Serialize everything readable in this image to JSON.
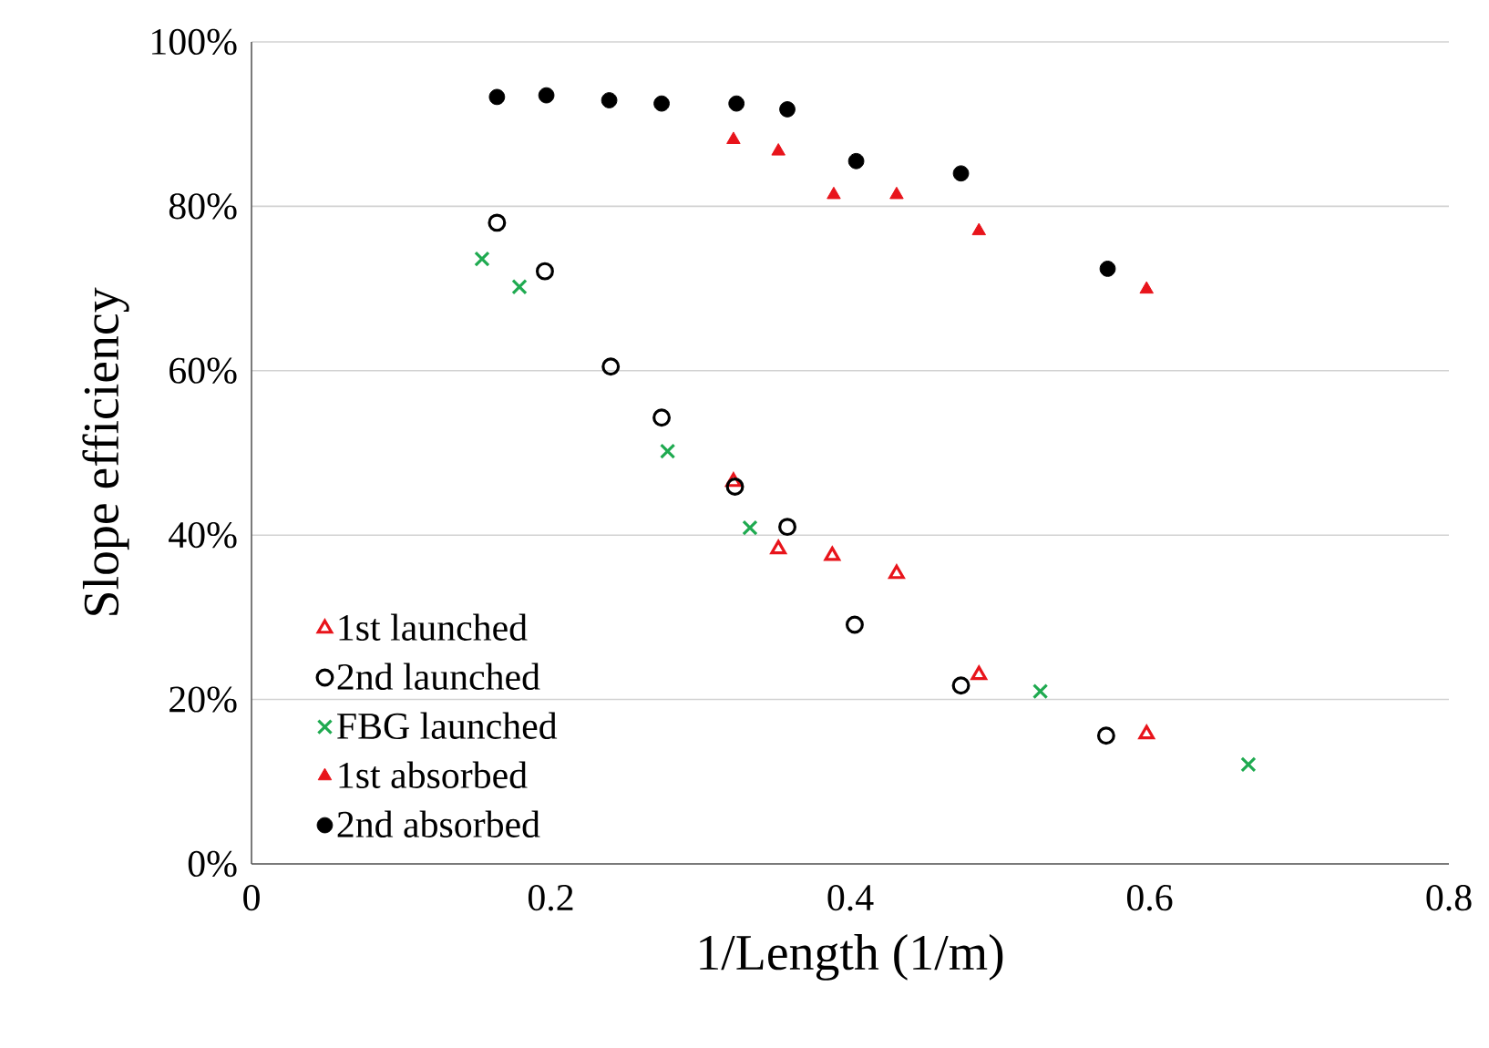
{
  "chart_data": {
    "type": "scatter",
    "xlabel": "1/Length (1/m)",
    "ylabel": "Slope efficiency",
    "xlim": [
      0,
      0.8
    ],
    "xticks": [
      0,
      0.2,
      0.4,
      0.6,
      0.8
    ],
    "ylim": [
      0,
      100
    ],
    "yticks": [
      {
        "value": 0,
        "label": "0%"
      },
      {
        "value": 20,
        "label": "20%"
      },
      {
        "value": 40,
        "label": "40%"
      },
      {
        "value": 60,
        "label": "60%"
      },
      {
        "value": 80,
        "label": "80%"
      },
      {
        "value": 100,
        "label": "100%"
      }
    ],
    "grid": "y",
    "legend": "bottom left",
    "series": [
      {
        "name": "1st launched",
        "color": "#e8141b",
        "marker": "triangle-open",
        "x": [
          0.322,
          0.352,
          0.388,
          0.431,
          0.486,
          0.598
        ],
        "values": [
          46.5,
          38.3,
          37.5,
          35.3,
          23.0,
          15.8
        ]
      },
      {
        "name": "2nd launched",
        "color": "#000000",
        "marker": "circle-open",
        "x": [
          0.164,
          0.196,
          0.24,
          0.274,
          0.323,
          0.358,
          0.403,
          0.474,
          0.571
        ],
        "values": [
          78.0,
          72.1,
          60.5,
          54.3,
          45.9,
          41.0,
          29.1,
          21.7,
          15.6
        ]
      },
      {
        "name": "FBG launched",
        "color": "#1faa50",
        "marker": "cross",
        "x": [
          0.154,
          0.179,
          0.278,
          0.333,
          0.527,
          0.666
        ],
        "values": [
          73.6,
          70.2,
          50.2,
          40.9,
          21.0,
          12.1
        ]
      },
      {
        "name": "1st absorbed",
        "color": "#e8141b",
        "marker": "triangle",
        "x": [
          0.322,
          0.352,
          0.389,
          0.431,
          0.486,
          0.598
        ],
        "values": [
          88.1,
          86.7,
          81.4,
          81.4,
          77.0,
          69.9
        ]
      },
      {
        "name": "2nd absorbed",
        "color": "#000000",
        "marker": "circle",
        "x": [
          0.164,
          0.197,
          0.239,
          0.274,
          0.324,
          0.358,
          0.404,
          0.474,
          0.572
        ],
        "values": [
          93.3,
          93.5,
          92.9,
          92.5,
          92.5,
          91.8,
          85.5,
          84.0,
          72.4
        ]
      }
    ]
  }
}
